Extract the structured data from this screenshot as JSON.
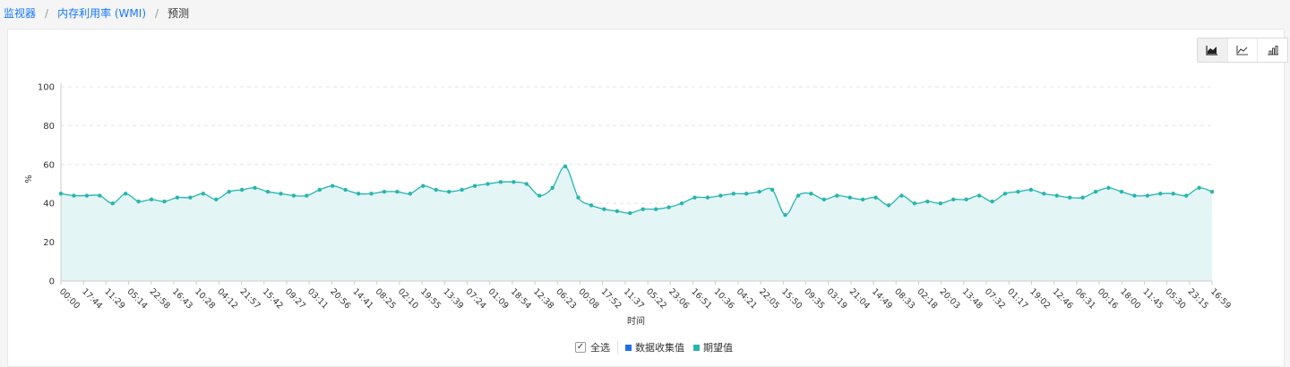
{
  "breadcrumb": {
    "items": [
      "监视器",
      "内存利用率 (WMI)"
    ],
    "separator": "/",
    "current": "预测"
  },
  "chart_type_switch": {
    "buttons": [
      "area-chart-icon",
      "line-chart-icon",
      "bar-chart-icon"
    ],
    "active": 0
  },
  "legend": {
    "select_all_label": "全选",
    "select_all_mark": "✓",
    "items": [
      {
        "label": "数据收集值",
        "color": "#1f6fe5"
      },
      {
        "label": "期望值",
        "color": "#26b5b0"
      }
    ]
  },
  "chart_data": {
    "type": "area",
    "title": "",
    "xlabel": "时间",
    "ylabel": "%",
    "ylim": [
      0,
      100
    ],
    "yticks": [
      0,
      20,
      40,
      60,
      80,
      100
    ],
    "grid": true,
    "legend_position": "bottom",
    "x_tick_labels": [
      "00:00",
      "17:44",
      "11:29",
      "05:14",
      "22:58",
      "16:43",
      "10:28",
      "04:12",
      "21:57",
      "15:42",
      "09:27",
      "03:11",
      "20:56",
      "14:41",
      "08:25",
      "02:10",
      "19:55",
      "13:39",
      "07:24",
      "01:09",
      "18:54",
      "12:38",
      "06:23",
      "00:08",
      "17:52",
      "11:37",
      "05:22",
      "23:06",
      "16:51",
      "10:36",
      "04:21",
      "22:05",
      "15:50",
      "09:35",
      "03:19",
      "21:04",
      "14:49",
      "08:33",
      "02:18",
      "20:03",
      "13:48",
      "07:32",
      "01:17",
      "19:02",
      "12:46",
      "06:31",
      "00:16",
      "18:00",
      "11:45",
      "05:30",
      "23:15",
      "16:59"
    ],
    "series": [
      {
        "name": "期望值",
        "color": "#26b5b0",
        "fill": "#e3f5f4",
        "values": [
          45,
          44,
          44,
          44,
          40,
          45,
          41,
          42,
          41,
          43,
          43,
          45,
          42,
          46,
          47,
          48,
          46,
          45,
          44,
          44,
          47,
          49,
          47,
          45,
          45,
          46,
          46,
          45,
          49,
          47,
          46,
          47,
          49,
          50,
          51,
          51,
          50,
          44,
          48,
          59,
          43,
          39,
          37,
          36,
          35,
          37,
          37,
          38,
          40,
          43,
          43,
          44,
          45,
          45,
          46,
          47,
          34,
          44,
          45,
          42,
          44,
          43,
          42,
          43,
          39,
          44,
          40,
          41,
          40,
          42,
          42,
          44,
          41,
          45,
          46,
          47,
          45,
          44,
          43,
          43,
          46,
          48,
          46,
          44,
          44,
          45,
          45,
          44,
          48,
          46
        ]
      }
    ]
  }
}
